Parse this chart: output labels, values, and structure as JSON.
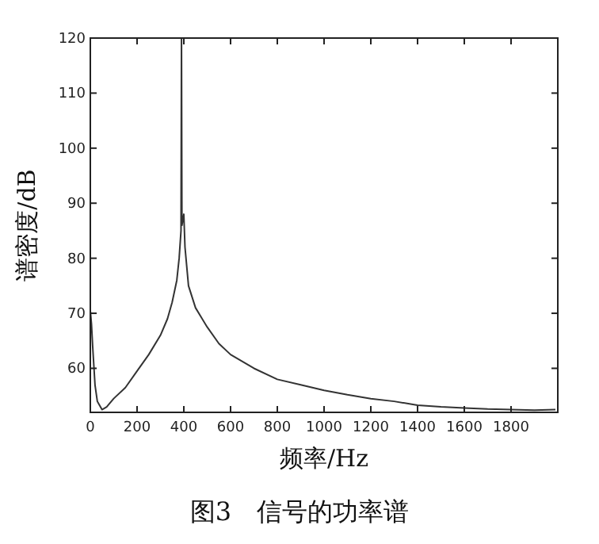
{
  "chart_data": {
    "type": "line",
    "xlabel": "频率/Hz",
    "ylabel": "谱密度/dB",
    "annotations": [
      "图3　信号的功率谱"
    ],
    "color": "#333333",
    "x": [
      0,
      5,
      10,
      20,
      30,
      50,
      70,
      100,
      150,
      200,
      250,
      300,
      330,
      350,
      370,
      380,
      388,
      390,
      392,
      400,
      405,
      420,
      450,
      500,
      550,
      600,
      700,
      800,
      900,
      1000,
      1100,
      1200,
      1300,
      1400,
      1500,
      1600,
      1700,
      1800,
      1900,
      1990
    ],
    "values": [
      70.5,
      68,
      64,
      57,
      54,
      52.5,
      53,
      54.5,
      56.5,
      59.5,
      62.5,
      66,
      69,
      72,
      76,
      80,
      85,
      120,
      86,
      88,
      82,
      75,
      71,
      67.5,
      64.5,
      62.5,
      60,
      58,
      57,
      56,
      55.2,
      54.5,
      54,
      53.3,
      53,
      52.8,
      52.6,
      52.5,
      52.4,
      52.5
    ],
    "xlim": [
      0,
      2000
    ],
    "ylim": [
      52,
      120
    ],
    "xticks": [
      0,
      200,
      400,
      600,
      800,
      1000,
      1200,
      1400,
      1600,
      1800
    ],
    "yticks": [
      60,
      70,
      80,
      90,
      100,
      110,
      120
    ]
  }
}
